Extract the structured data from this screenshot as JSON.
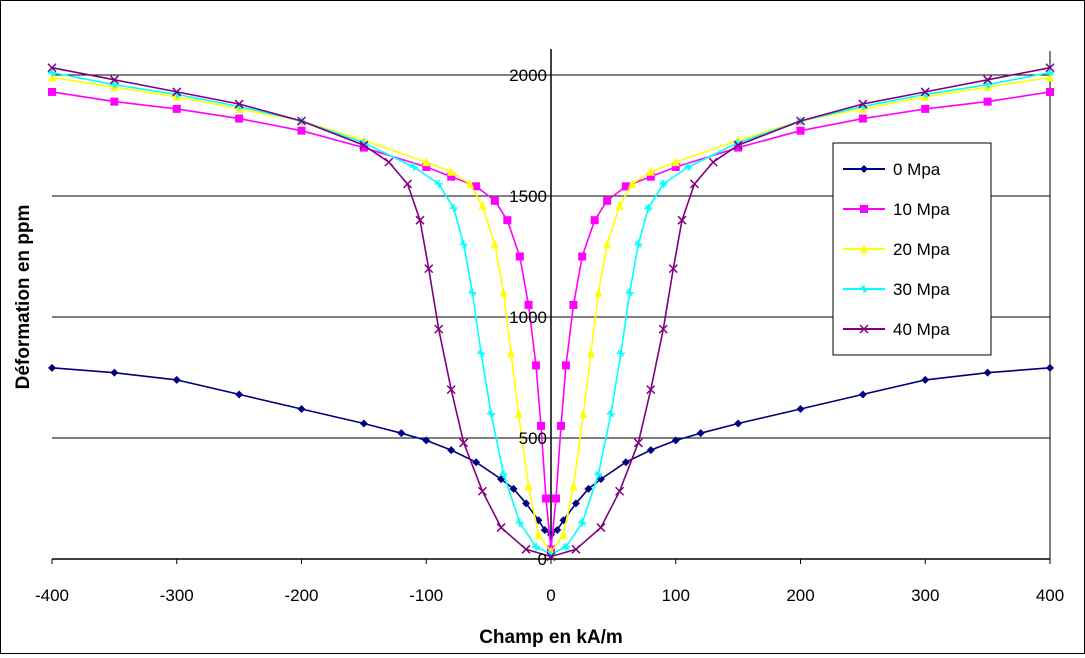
{
  "chart_data": {
    "type": "line",
    "title": "",
    "xlabel": "Champ en kA/m",
    "ylabel": "Déformation en ppm",
    "xlim": [
      -400,
      400
    ],
    "ylim": [
      0,
      2000
    ],
    "x_ticks": [
      -400,
      -300,
      -200,
      -100,
      0,
      100,
      200,
      300,
      400
    ],
    "x_tick_labels": [
      "-400",
      "-300",
      "-200",
      "-100",
      "0",
      "100",
      "200",
      "300",
      "400"
    ],
    "y_ticks": [
      0,
      500,
      1000,
      1500,
      2000
    ],
    "y_tick_labels": [
      "0",
      "500",
      "1000",
      "1500",
      "2000"
    ],
    "grid": "horizontal",
    "legend_position": "right",
    "series": [
      {
        "name": "0 Mpa",
        "color": "#000080",
        "marker": "diamond",
        "points": [
          [
            -400,
            790
          ],
          [
            -350,
            770
          ],
          [
            -300,
            740
          ],
          [
            -250,
            680
          ],
          [
            -200,
            620
          ],
          [
            -150,
            560
          ],
          [
            -120,
            520
          ],
          [
            -100,
            490
          ],
          [
            -80,
            450
          ],
          [
            -60,
            400
          ],
          [
            -40,
            330
          ],
          [
            -30,
            290
          ],
          [
            -20,
            230
          ],
          [
            -10,
            160
          ],
          [
            -5,
            120
          ],
          [
            0,
            100
          ],
          [
            5,
            120
          ],
          [
            10,
            160
          ],
          [
            20,
            230
          ],
          [
            30,
            290
          ],
          [
            40,
            330
          ],
          [
            60,
            400
          ],
          [
            80,
            450
          ],
          [
            100,
            490
          ],
          [
            120,
            520
          ],
          [
            150,
            560
          ],
          [
            200,
            620
          ],
          [
            250,
            680
          ],
          [
            300,
            740
          ],
          [
            350,
            770
          ],
          [
            400,
            790
          ]
        ]
      },
      {
        "name": "10 Mpa",
        "color": "#FF00FF",
        "marker": "square",
        "points": [
          [
            -400,
            1930
          ],
          [
            -350,
            1890
          ],
          [
            -300,
            1860
          ],
          [
            -250,
            1820
          ],
          [
            -200,
            1770
          ],
          [
            -150,
            1700
          ],
          [
            -100,
            1620
          ],
          [
            -80,
            1580
          ],
          [
            -60,
            1540
          ],
          [
            -45,
            1480
          ],
          [
            -35,
            1400
          ],
          [
            -25,
            1250
          ],
          [
            -18,
            1050
          ],
          [
            -12,
            800
          ],
          [
            -8,
            550
          ],
          [
            -4,
            250
          ],
          [
            0,
            40
          ],
          [
            4,
            250
          ],
          [
            8,
            550
          ],
          [
            12,
            800
          ],
          [
            18,
            1050
          ],
          [
            25,
            1250
          ],
          [
            35,
            1400
          ],
          [
            45,
            1480
          ],
          [
            60,
            1540
          ],
          [
            80,
            1580
          ],
          [
            100,
            1620
          ],
          [
            150,
            1700
          ],
          [
            200,
            1770
          ],
          [
            250,
            1820
          ],
          [
            300,
            1860
          ],
          [
            350,
            1890
          ],
          [
            400,
            1930
          ]
        ]
      },
      {
        "name": "20 Mpa",
        "color": "#FFFF00",
        "marker": "triangle",
        "points": [
          [
            -400,
            1990
          ],
          [
            -350,
            1950
          ],
          [
            -300,
            1910
          ],
          [
            -250,
            1860
          ],
          [
            -200,
            1810
          ],
          [
            -150,
            1730
          ],
          [
            -100,
            1640
          ],
          [
            -80,
            1600
          ],
          [
            -65,
            1550
          ],
          [
            -55,
            1460
          ],
          [
            -45,
            1300
          ],
          [
            -38,
            1100
          ],
          [
            -32,
            850
          ],
          [
            -26,
            600
          ],
          [
            -18,
            300
          ],
          [
            -10,
            100
          ],
          [
            0,
            30
          ],
          [
            10,
            100
          ],
          [
            18,
            300
          ],
          [
            26,
            600
          ],
          [
            32,
            850
          ],
          [
            38,
            1100
          ],
          [
            45,
            1300
          ],
          [
            55,
            1460
          ],
          [
            65,
            1550
          ],
          [
            80,
            1600
          ],
          [
            100,
            1640
          ],
          [
            150,
            1730
          ],
          [
            200,
            1810
          ],
          [
            250,
            1860
          ],
          [
            300,
            1910
          ],
          [
            350,
            1950
          ],
          [
            400,
            1990
          ]
        ]
      },
      {
        "name": "30 Mpa",
        "color": "#00FFFF",
        "marker": "star",
        "points": [
          [
            -400,
            2010
          ],
          [
            -350,
            1960
          ],
          [
            -300,
            1920
          ],
          [
            -250,
            1870
          ],
          [
            -200,
            1810
          ],
          [
            -150,
            1720
          ],
          [
            -110,
            1620
          ],
          [
            -90,
            1550
          ],
          [
            -78,
            1450
          ],
          [
            -70,
            1300
          ],
          [
            -63,
            1100
          ],
          [
            -56,
            850
          ],
          [
            -48,
            600
          ],
          [
            -38,
            350
          ],
          [
            -25,
            150
          ],
          [
            -12,
            50
          ],
          [
            0,
            20
          ],
          [
            12,
            50
          ],
          [
            25,
            150
          ],
          [
            38,
            350
          ],
          [
            48,
            600
          ],
          [
            56,
            850
          ],
          [
            63,
            1100
          ],
          [
            70,
            1300
          ],
          [
            78,
            1450
          ],
          [
            90,
            1550
          ],
          [
            110,
            1620
          ],
          [
            150,
            1720
          ],
          [
            200,
            1810
          ],
          [
            250,
            1870
          ],
          [
            300,
            1920
          ],
          [
            350,
            1960
          ],
          [
            400,
            2010
          ]
        ]
      },
      {
        "name": "40 Mpa",
        "color": "#800080",
        "marker": "x",
        "points": [
          [
            -400,
            2030
          ],
          [
            -350,
            1980
          ],
          [
            -300,
            1930
          ],
          [
            -250,
            1880
          ],
          [
            -200,
            1810
          ],
          [
            -150,
            1710
          ],
          [
            -130,
            1640
          ],
          [
            -115,
            1550
          ],
          [
            -105,
            1400
          ],
          [
            -98,
            1200
          ],
          [
            -90,
            950
          ],
          [
            -80,
            700
          ],
          [
            -70,
            480
          ],
          [
            -55,
            280
          ],
          [
            -40,
            130
          ],
          [
            -20,
            40
          ],
          [
            0,
            10
          ],
          [
            20,
            40
          ],
          [
            40,
            130
          ],
          [
            55,
            280
          ],
          [
            70,
            480
          ],
          [
            80,
            700
          ],
          [
            90,
            950
          ],
          [
            98,
            1200
          ],
          [
            105,
            1400
          ],
          [
            115,
            1550
          ],
          [
            130,
            1640
          ],
          [
            150,
            1710
          ],
          [
            200,
            1810
          ],
          [
            250,
            1880
          ],
          [
            300,
            1930
          ],
          [
            350,
            1980
          ],
          [
            400,
            2030
          ]
        ]
      }
    ]
  }
}
